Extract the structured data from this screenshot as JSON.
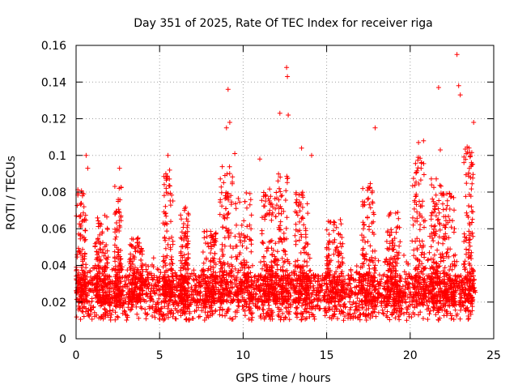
{
  "chart_data": {
    "type": "scatter",
    "title": "Day 351 of 2025, Rate Of TEC Index for receiver riga",
    "xlabel": "GPS time / hours",
    "ylabel": "ROTI / TECUs",
    "xlim": [
      0,
      25
    ],
    "ylim": [
      0,
      0.16
    ],
    "xticks": [
      0,
      5,
      10,
      15,
      20,
      25
    ],
    "xtick_labels": [
      "0",
      "5",
      "10",
      "15",
      "20",
      "25"
    ],
    "yticks": [
      0,
      0.02,
      0.04,
      0.06,
      0.08,
      0.1,
      0.12,
      0.14,
      0.16
    ],
    "ytick_labels": [
      "0",
      "0.02",
      "0.04",
      "0.06",
      "0.08",
      "0.1",
      "0.12",
      "0.14",
      "0.16"
    ],
    "grid": true,
    "marker": "+",
    "color": "#ff0000",
    "series": [
      {
        "name": "ROTI",
        "outliers": {
          "x": [
            0.6,
            0.7,
            2.6,
            5.5,
            5.6,
            9.1,
            9.2,
            9.0,
            9.5,
            11.0,
            12.2,
            12.6,
            12.65,
            12.7,
            13.5,
            14.1,
            17.9,
            20.5,
            20.8,
            21.7,
            21.8,
            22.8,
            22.9,
            23.0,
            23.8
          ],
          "y": [
            0.1,
            0.093,
            0.093,
            0.1,
            0.092,
            0.136,
            0.118,
            0.115,
            0.101,
            0.098,
            0.123,
            0.148,
            0.143,
            0.122,
            0.104,
            0.1,
            0.115,
            0.107,
            0.108,
            0.137,
            0.103,
            0.155,
            0.138,
            0.133,
            0.118
          ]
        },
        "bursts": [
          {
            "x": 0.3,
            "w": 0.6,
            "peak": 0.082
          },
          {
            "x": 1.5,
            "w": 0.8,
            "peak": 0.068
          },
          {
            "x": 2.5,
            "w": 0.4,
            "peak": 0.085
          },
          {
            "x": 3.6,
            "w": 0.8,
            "peak": 0.055
          },
          {
            "x": 5.5,
            "w": 0.6,
            "peak": 0.09
          },
          {
            "x": 6.5,
            "w": 0.5,
            "peak": 0.072
          },
          {
            "x": 8.0,
            "w": 0.8,
            "peak": 0.06
          },
          {
            "x": 9.0,
            "w": 0.8,
            "peak": 0.095
          },
          {
            "x": 10.0,
            "w": 1.0,
            "peak": 0.08
          },
          {
            "x": 11.5,
            "w": 0.8,
            "peak": 0.085
          },
          {
            "x": 12.3,
            "w": 0.8,
            "peak": 0.09
          },
          {
            "x": 13.5,
            "w": 0.8,
            "peak": 0.08
          },
          {
            "x": 15.5,
            "w": 1.0,
            "peak": 0.065
          },
          {
            "x": 17.5,
            "w": 0.8,
            "peak": 0.085
          },
          {
            "x": 19.0,
            "w": 0.8,
            "peak": 0.07
          },
          {
            "x": 20.5,
            "w": 0.8,
            "peak": 0.1
          },
          {
            "x": 21.5,
            "w": 0.7,
            "peak": 0.09
          },
          {
            "x": 22.3,
            "w": 0.8,
            "peak": 0.08
          },
          {
            "x": 23.5,
            "w": 0.6,
            "peak": 0.105
          }
        ],
        "baseline_range": [
          0.01,
          0.035
        ],
        "x_range": [
          0,
          23.9
        ]
      }
    ]
  }
}
